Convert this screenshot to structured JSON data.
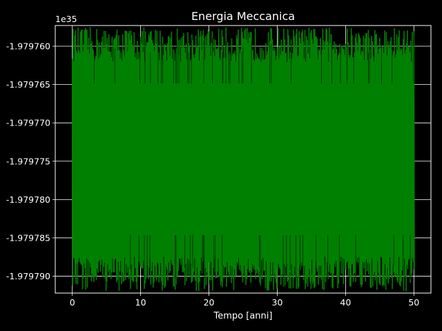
{
  "chart_data": {
    "type": "line",
    "title": "Energia Meccanica",
    "xlabel": "Tempo [anni]",
    "ylabel": "",
    "y_offset_label": "1e35",
    "xlim": [
      -2.5,
      52.5
    ],
    "ylim": [
      -1.9797922,
      -1.9797573
    ],
    "x_ticks": [
      0,
      10,
      20,
      30,
      40,
      50
    ],
    "x_tick_labels": [
      "0",
      "10",
      "20",
      "30",
      "40",
      "50"
    ],
    "y_ticks": [
      -1.97976,
      -1.979765,
      -1.97977,
      -1.979775,
      -1.97978,
      -1.979785,
      -1.97979
    ],
    "y_tick_labels": [
      "-1.979760",
      "-1.979765",
      "-1.979770",
      "-1.979775",
      "-1.979780",
      "-1.979785",
      "-1.979790"
    ],
    "grid": true,
    "colors": {
      "background": "#000000",
      "axes": "#ffffff",
      "grid": "#ffffff",
      "series": "#008000",
      "text": "#ffffff"
    },
    "series": [
      {
        "name": "",
        "x_range": [
          0,
          50
        ],
        "y_band_min": -1.979792,
        "y_band_max": -1.9797575,
        "core_min": -1.979785,
        "core_max": -1.9797645
      }
    ]
  }
}
